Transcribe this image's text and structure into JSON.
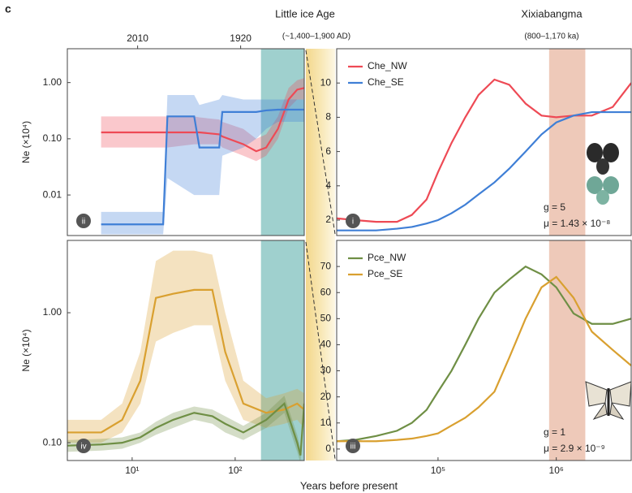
{
  "header": {
    "letter": "c",
    "left_title": "Little ice Age",
    "left_subtitle": "(~1,400–1,900 AD)",
    "right_title": "Xixiabangma",
    "right_subtitle": "(800–1,170 ka)",
    "xlabel": "Years before present"
  },
  "chart_data": [
    {
      "type": "line",
      "panel": "ii",
      "xscale": "log",
      "yscale": "log",
      "xlim": [
        2.35,
        468
      ],
      "ylim": [
        0.0019,
        4
      ],
      "ylabel": "Ne (×10⁴)",
      "yticks": [
        {
          "value": 1,
          "label": "1.00"
        },
        {
          "value": 0.1,
          "label": "0.10"
        },
        {
          "value": 0.01,
          "label": "0.01"
        }
      ],
      "top_xticks": [
        {
          "value": 11.3,
          "label": "2010"
        },
        {
          "value": 113,
          "label": "1920"
        }
      ],
      "shade": [
        178,
        468
      ],
      "shade_color": "#7fc0bd",
      "x": [
        5,
        10,
        20,
        22,
        40,
        45,
        70,
        75,
        120,
        160,
        200,
        260,
        330,
        400,
        468
      ],
      "series": [
        {
          "color": "#ee4a55",
          "values": [
            0.13,
            0.13,
            0.13,
            0.13,
            0.13,
            0.13,
            0.12,
            0.11,
            0.08,
            0.06,
            0.07,
            0.15,
            0.5,
            0.75,
            0.8
          ],
          "lower": [
            0.07,
            0.07,
            0.07,
            0.07,
            0.08,
            0.08,
            0.08,
            0.07,
            0.05,
            0.04,
            0.05,
            0.1,
            0.35,
            0.5,
            0.5
          ],
          "upper": [
            0.25,
            0.25,
            0.25,
            0.25,
            0.25,
            0.24,
            0.22,
            0.2,
            0.15,
            0.1,
            0.12,
            0.25,
            0.8,
            1.1,
            1.2
          ]
        },
        {
          "color": "#3f7fd6",
          "values": [
            0.003,
            0.003,
            0.003,
            0.25,
            0.25,
            0.07,
            0.07,
            0.3,
            0.3,
            0.3,
            0.32,
            0.33,
            0.33,
            0.33,
            0.33
          ],
          "lower": [
            0.002,
            0.002,
            0.002,
            0.02,
            0.01,
            0.01,
            0.01,
            0.05,
            0.07,
            0.1,
            0.15,
            0.2,
            0.2,
            0.2,
            0.2
          ],
          "upper": [
            0.005,
            0.005,
            0.005,
            0.6,
            0.6,
            0.4,
            0.5,
            0.6,
            0.5,
            0.5,
            0.5,
            0.5,
            0.5,
            0.5,
            0.5
          ]
        }
      ]
    },
    {
      "type": "line",
      "panel": "i",
      "xscale": "log",
      "yscale": "linear",
      "xlim": [
        13900,
        4300000
      ],
      "ylim": [
        1.1,
        12
      ],
      "yticks": [
        2,
        4,
        6,
        8,
        10
      ],
      "legend": "upper left",
      "shade": [
        870000,
        1760000
      ],
      "shade_color": "#e8b7a2",
      "annotations": [
        "g = 5",
        "μ = 1.43 × 10⁻⁸"
      ],
      "x": [
        14000,
        20000,
        30000,
        45000,
        60000,
        80000,
        100000,
        130000,
        170000,
        220000,
        300000,
        400000,
        550000,
        750000,
        1000000,
        1400000,
        2000000,
        3000000,
        4300000
      ],
      "series": [
        {
          "name": "Che_NW",
          "color": "#ee4a55",
          "values": [
            2.1,
            2.0,
            1.9,
            1.9,
            2.3,
            3.2,
            4.8,
            6.5,
            8.0,
            9.3,
            10.2,
            9.9,
            8.8,
            8.1,
            8.0,
            8.1,
            8.1,
            8.6,
            10.0
          ]
        },
        {
          "name": "Che_SE",
          "color": "#3f7fd6",
          "values": [
            1.4,
            1.4,
            1.4,
            1.5,
            1.6,
            1.8,
            2.0,
            2.4,
            2.9,
            3.5,
            4.2,
            5.0,
            6.0,
            7.0,
            7.7,
            8.1,
            8.3,
            8.3,
            8.3
          ]
        }
      ]
    },
    {
      "type": "line",
      "panel": "iv",
      "xscale": "log",
      "yscale": "log",
      "xlim": [
        2.35,
        468
      ],
      "ylim": [
        0.073,
        3.6
      ],
      "ylabel": "Ne (×10⁴)",
      "yticks": [
        {
          "value": 1,
          "label": "1.00"
        },
        {
          "value": 0.1,
          "label": "0.10"
        }
      ],
      "xticks": [
        {
          "value": 10,
          "label": "10¹"
        },
        {
          "value": 100,
          "label": "10²"
        }
      ],
      "shade": [
        178,
        468
      ],
      "shade_color": "#7fc0bd",
      "x": [
        2.35,
        5,
        8,
        12,
        17,
        25,
        40,
        60,
        80,
        120,
        200,
        300,
        400,
        430,
        468
      ],
      "series": [
        {
          "color": "#d9a030",
          "values": [
            0.12,
            0.12,
            0.15,
            0.3,
            1.3,
            1.4,
            1.5,
            1.5,
            0.5,
            0.2,
            0.17,
            0.18,
            0.2,
            0.19,
            0.18
          ],
          "lower": [
            0.1,
            0.1,
            0.12,
            0.2,
            0.6,
            0.7,
            0.8,
            0.8,
            0.3,
            0.15,
            0.13,
            0.14,
            0.15,
            0.14,
            0.13
          ],
          "upper": [
            0.15,
            0.15,
            0.2,
            0.5,
            2.5,
            3,
            3,
            2.8,
            1,
            0.3,
            0.22,
            0.24,
            0.26,
            0.25,
            0.24
          ]
        },
        {
          "color": "#6f8f45",
          "values": [
            0.095,
            0.097,
            0.1,
            0.11,
            0.13,
            0.15,
            0.17,
            0.16,
            0.14,
            0.12,
            0.15,
            0.2,
            0.1,
            0.08,
            0.2
          ],
          "lower": [
            0.085,
            0.087,
            0.09,
            0.1,
            0.115,
            0.13,
            0.15,
            0.14,
            0.12,
            0.105,
            0.13,
            0.17,
            0.085,
            0.07,
            0.17
          ],
          "upper": [
            0.105,
            0.107,
            0.11,
            0.12,
            0.145,
            0.17,
            0.19,
            0.18,
            0.16,
            0.135,
            0.17,
            0.23,
            0.115,
            0.09,
            0.23
          ]
        }
      ]
    },
    {
      "type": "line",
      "panel": "iii",
      "xscale": "log",
      "yscale": "linear",
      "xlim": [
        13900,
        4300000
      ],
      "ylim": [
        -4.4,
        80
      ],
      "yticks": [
        0,
        10,
        20,
        30,
        40,
        50,
        60,
        70
      ],
      "legend": "upper left",
      "xticks": [
        {
          "value": 100000,
          "label": "10⁵"
        },
        {
          "value": 1000000,
          "label": "10⁶"
        }
      ],
      "shade": [
        870000,
        1760000
      ],
      "shade_color": "#e8b7a2",
      "annotations": [
        "g = 1",
        "μ = 2.9 × 10⁻⁹"
      ],
      "x": [
        14000,
        20000,
        30000,
        45000,
        60000,
        80000,
        100000,
        130000,
        170000,
        220000,
        300000,
        400000,
        550000,
        750000,
        1000000,
        1400000,
        2000000,
        3000000,
        4300000
      ],
      "series": [
        {
          "name": "Pce_NW",
          "color": "#6f8f45",
          "values": [
            3,
            3.5,
            5,
            7,
            10,
            15,
            22,
            30,
            40,
            50,
            60,
            65,
            70,
            67,
            62,
            52,
            48,
            48,
            50
          ]
        },
        {
          "name": "Pce_SE",
          "color": "#d9a030",
          "values": [
            3,
            3,
            3,
            3.5,
            4,
            5,
            6,
            9,
            12,
            16,
            22,
            35,
            50,
            62,
            66,
            58,
            45,
            38,
            32
          ]
        }
      ]
    }
  ]
}
